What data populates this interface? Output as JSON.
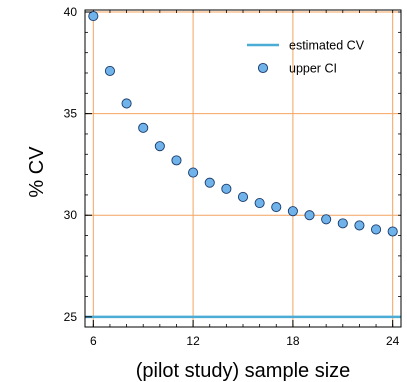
{
  "chart_data": {
    "type": "scatter",
    "title": "",
    "xlabel": "(pilot study) sample size",
    "ylabel": "% CV",
    "xlim": [
      5.5,
      24.5
    ],
    "ylim": [
      24.5,
      40.1
    ],
    "x_ticks": [
      6,
      12,
      18,
      24
    ],
    "y_ticks": [
      25,
      30,
      35,
      40
    ],
    "grid": true,
    "grid_color": "#f4a460",
    "legend_position": "top-right",
    "series": [
      {
        "name": "estimated CV",
        "type": "hline",
        "y": 25,
        "color": "#4bacd6"
      },
      {
        "name": "upper CI",
        "type": "scatter",
        "color": "#6fb3ea",
        "edge_color": "#1a3a6a",
        "x": [
          6,
          7,
          8,
          9,
          10,
          11,
          12,
          13,
          14,
          15,
          16,
          17,
          18,
          19,
          20,
          21,
          22,
          23,
          24
        ],
        "y": [
          39.8,
          37.1,
          35.5,
          34.3,
          33.4,
          32.7,
          32.1,
          31.6,
          31.3,
          30.9,
          30.6,
          30.4,
          30.2,
          30.0,
          29.8,
          29.6,
          29.5,
          29.3,
          29.2
        ]
      }
    ]
  }
}
